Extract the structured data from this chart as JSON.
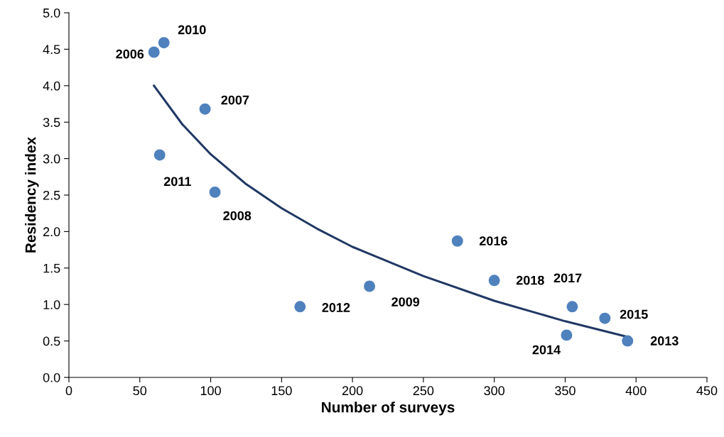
{
  "chart_data": {
    "type": "scatter",
    "xlabel": "Number of surveys",
    "ylabel": "Residency index",
    "xlim": [
      0,
      450
    ],
    "xticks": [
      0,
      50,
      100,
      150,
      200,
      250,
      300,
      350,
      400,
      450
    ],
    "ylim": [
      0,
      5
    ],
    "yticks": [
      {
        "value": 0,
        "label": "0.0"
      },
      {
        "value": 0.5,
        "label": "0.5"
      },
      {
        "value": 1,
        "label": "1.0"
      },
      {
        "value": 1.5,
        "label": "1.5"
      },
      {
        "value": 2,
        "label": "2.0"
      },
      {
        "value": 2.5,
        "label": "2.5"
      },
      {
        "value": 3,
        "label": "3.0"
      },
      {
        "value": 3.5,
        "label": "3.5"
      },
      {
        "value": 4,
        "label": "4.0"
      },
      {
        "value": 4.5,
        "label": "4.5"
      },
      {
        "value": 5,
        "label": "5.0"
      }
    ],
    "grid": false,
    "series": [
      {
        "marker": "circle",
        "color": "#4f81bd",
        "x": [
          60,
          67,
          96,
          64,
          103,
          163,
          212,
          274,
          300,
          355,
          378,
          351,
          394
        ],
        "values": [
          4.46,
          4.59,
          3.68,
          3.05,
          2.54,
          0.97,
          1.25,
          1.87,
          1.33,
          0.97,
          0.81,
          0.58,
          0.5
        ]
      },
      {
        "type": "line",
        "color": "#203864",
        "marker": "none",
        "line_style": "solid",
        "x": [
          60,
          80,
          100,
          125,
          150,
          175,
          200,
          250,
          300,
          350,
          395
        ],
        "values": [
          4.0,
          3.47,
          3.06,
          2.65,
          2.32,
          2.04,
          1.79,
          1.39,
          1.05,
          0.77,
          0.55
        ]
      }
    ],
    "annotations": [
      {
        "text": "2006",
        "x": 60,
        "y": 4.46
      },
      {
        "text": "2010",
        "x": 67,
        "y": 4.59
      },
      {
        "text": "2007",
        "x": 96,
        "y": 3.68
      },
      {
        "text": "2011",
        "x": 64,
        "y": 3.05
      },
      {
        "text": "2008",
        "x": 103,
        "y": 2.54
      },
      {
        "text": "2012",
        "x": 163,
        "y": 0.97
      },
      {
        "text": "2009",
        "x": 212,
        "y": 1.25
      },
      {
        "text": "2016",
        "x": 274,
        "y": 1.87
      },
      {
        "text": "2018",
        "x": 300,
        "y": 1.33
      },
      {
        "text": "2017",
        "x": 355,
        "y": 0.97
      },
      {
        "text": "2015",
        "x": 378,
        "y": 0.81
      },
      {
        "text": "2014",
        "x": 351,
        "y": 0.58
      },
      {
        "text": "2013",
        "x": 394,
        "y": 0.5
      }
    ]
  }
}
